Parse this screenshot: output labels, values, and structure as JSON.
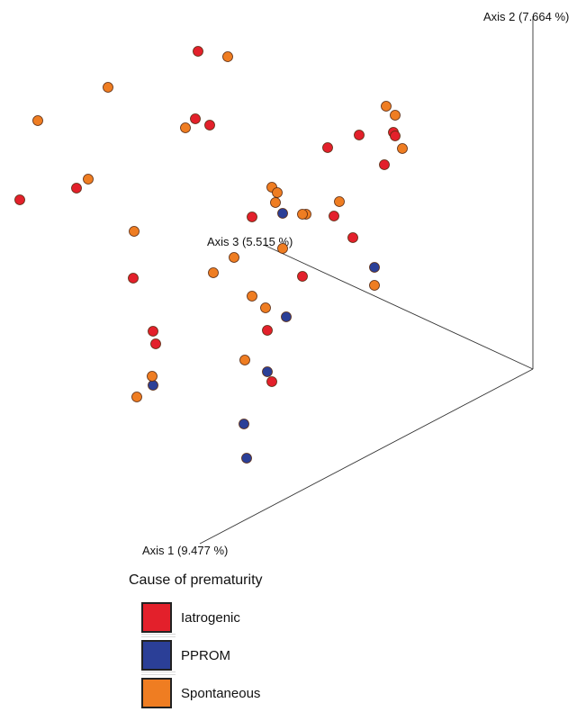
{
  "chart_data": {
    "type": "scatter",
    "title": "",
    "axes": {
      "axis1_label": "Axis 1 (9.477 %)",
      "axis2_label": "Axis 2 (7.664 %)",
      "axis3_label": "Axis 3 (5.515 %)"
    },
    "legend": {
      "title": "Cause of prematurity",
      "placement": "bottom-left",
      "items": [
        {
          "label": "Iatrogenic",
          "color": "#e3202b"
        },
        {
          "label": "PPROM",
          "color": "#2b3f97"
        },
        {
          "label": "Spontaneous",
          "color": "#ef7d22"
        }
      ]
    },
    "series": [
      {
        "name": "Iatrogenic",
        "color": "#e3202b",
        "points": [
          [
            220,
            57
          ],
          [
            217,
            132
          ],
          [
            233,
            139
          ],
          [
            22,
            222
          ],
          [
            85,
            209
          ],
          [
            364,
            164
          ],
          [
            399,
            150
          ],
          [
            437,
            147
          ],
          [
            439,
            151
          ],
          [
            427,
            183
          ],
          [
            280,
            241
          ],
          [
            371,
            240
          ],
          [
            392,
            264
          ],
          [
            336,
            307
          ],
          [
            148,
            309
          ],
          [
            170,
            368
          ],
          [
            173,
            382
          ],
          [
            297,
            367
          ],
          [
            302,
            424
          ]
        ]
      },
      {
        "name": "PPROM",
        "color": "#2b3f97",
        "points": [
          [
            314,
            237
          ],
          [
            416,
            297
          ],
          [
            318,
            352
          ],
          [
            297,
            413
          ],
          [
            170,
            428
          ],
          [
            271,
            471
          ],
          [
            274,
            509
          ]
        ]
      },
      {
        "name": "Spontaneous",
        "color": "#ef7d22",
        "points": [
          [
            253,
            63
          ],
          [
            120,
            97
          ],
          [
            42,
            134
          ],
          [
            206,
            142
          ],
          [
            98,
            199
          ],
          [
            429,
            118
          ],
          [
            439,
            128
          ],
          [
            447,
            165
          ],
          [
            302,
            208
          ],
          [
            308,
            214
          ],
          [
            306,
            225
          ],
          [
            340,
            238
          ],
          [
            336,
            238
          ],
          [
            377,
            224
          ],
          [
            149,
            257
          ],
          [
            260,
            286
          ],
          [
            237,
            303
          ],
          [
            314,
            276
          ],
          [
            416,
            317
          ],
          [
            280,
            329
          ],
          [
            295,
            342
          ],
          [
            272,
            400
          ],
          [
            169,
            418
          ],
          [
            152,
            441
          ]
        ]
      }
    ]
  }
}
